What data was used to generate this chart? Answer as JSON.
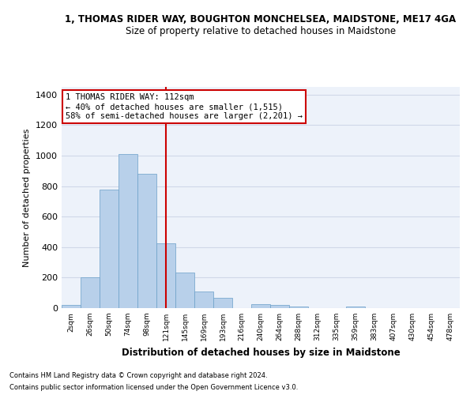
{
  "title_line1": "1, THOMAS RIDER WAY, BOUGHTON MONCHELSEA, MAIDSTONE, ME17 4GA",
  "title_line2": "Size of property relative to detached houses in Maidstone",
  "xlabel": "Distribution of detached houses by size in Maidstone",
  "ylabel": "Number of detached properties",
  "categories": [
    "2sqm",
    "26sqm",
    "50sqm",
    "74sqm",
    "98sqm",
    "121sqm",
    "145sqm",
    "169sqm",
    "193sqm",
    "216sqm",
    "240sqm",
    "264sqm",
    "288sqm",
    "312sqm",
    "335sqm",
    "359sqm",
    "383sqm",
    "407sqm",
    "430sqm",
    "454sqm",
    "478sqm"
  ],
  "values": [
    20,
    200,
    775,
    1010,
    880,
    425,
    235,
    110,
    68,
    0,
    25,
    20,
    10,
    0,
    0,
    10,
    0,
    0,
    0,
    0,
    0
  ],
  "bar_color": "#b8d0ea",
  "bar_edge_color": "#6a9fc8",
  "vline_x": 5,
  "vline_color": "#cc0000",
  "annotation_text": "1 THOMAS RIDER WAY: 112sqm\n← 40% of detached houses are smaller (1,515)\n58% of semi-detached houses are larger (2,201) →",
  "annotation_box_color": "#ffffff",
  "annotation_box_edge": "#cc0000",
  "ylim": [
    0,
    1450
  ],
  "yticks": [
    0,
    200,
    400,
    600,
    800,
    1000,
    1200,
    1400
  ],
  "footnote1": "Contains HM Land Registry data © Crown copyright and database right 2024.",
  "footnote2": "Contains public sector information licensed under the Open Government Licence v3.0.",
  "bg_color": "#edf2fa",
  "grid_color": "#d0d8e8"
}
